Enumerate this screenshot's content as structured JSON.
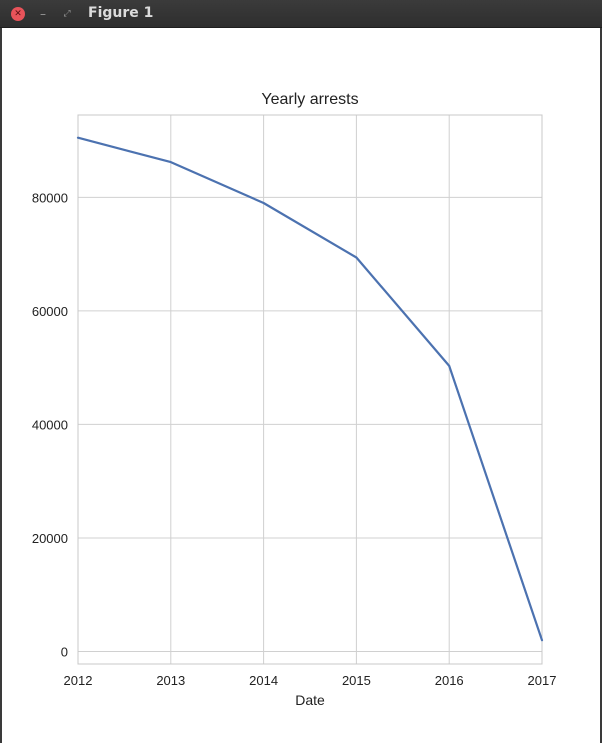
{
  "window": {
    "title": "Figure 1",
    "close_icon": "close-icon",
    "minimize_icon": "minimize-icon",
    "maximize_icon": "maximize-icon"
  },
  "chart_data": {
    "type": "line",
    "title": "Yearly arrests",
    "xlabel": "Date",
    "ylabel": "",
    "x": [
      2012,
      2013,
      2014,
      2015,
      2016,
      2017
    ],
    "series": [
      {
        "values": [
          90500,
          86200,
          79000,
          69400,
          50300,
          2000
        ],
        "color": "#4c72b0"
      }
    ],
    "xlim": [
      2012,
      2017
    ],
    "ylim": [
      -2200,
      94500
    ],
    "xticks": [
      "2012",
      "2013",
      "2014",
      "2015",
      "2016",
      "2017"
    ],
    "yticks": [
      0,
      20000,
      40000,
      60000,
      80000
    ],
    "grid": true,
    "legend": "none"
  }
}
